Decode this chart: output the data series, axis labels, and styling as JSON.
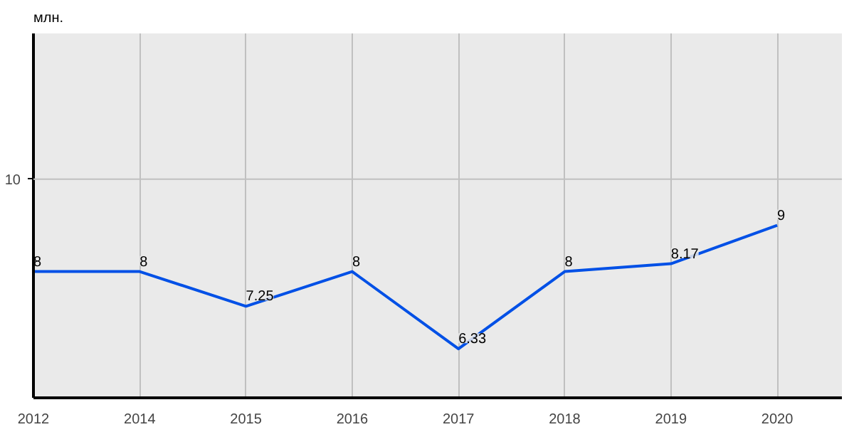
{
  "chart_data": {
    "type": "line",
    "ylabel": "млн.",
    "categories": [
      "2012",
      "2014",
      "2015",
      "2016",
      "2017",
      "2018",
      "2019",
      "2020"
    ],
    "series": [
      {
        "color": "#0050e6",
        "values": [
          8,
          8,
          7.25,
          8,
          6.33,
          8,
          8.17,
          9
        ]
      }
    ],
    "ylim": [
      5.27,
      13.15
    ],
    "ref_lines": [
      {
        "axis": "y",
        "value": 10,
        "label": "10",
        "color": "#c0c0c0"
      }
    ],
    "grid": "x",
    "data_labels": true,
    "marker": "none",
    "line_style": "solid"
  }
}
